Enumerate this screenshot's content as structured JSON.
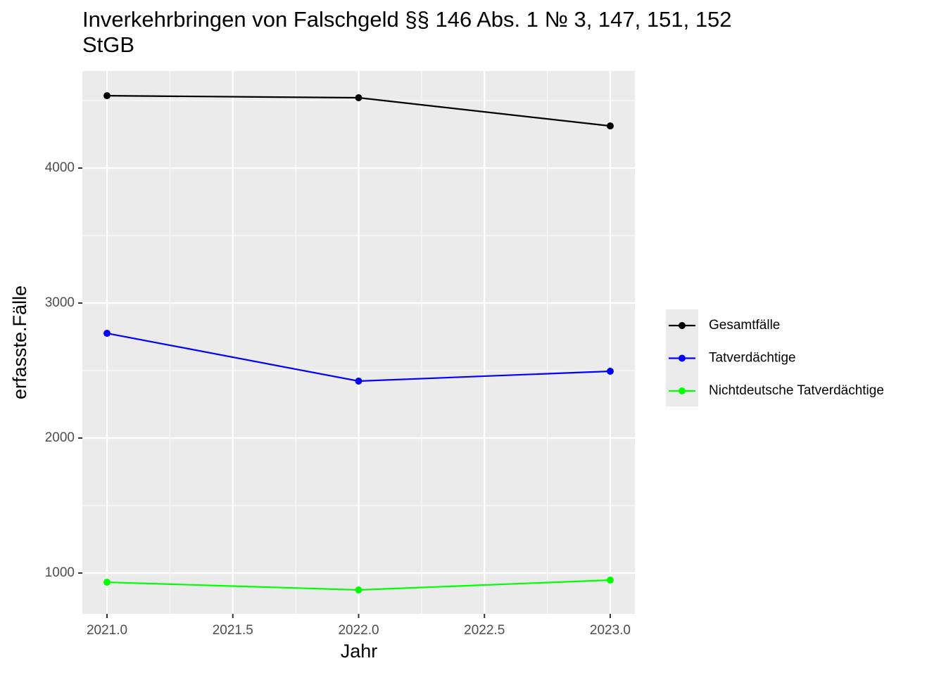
{
  "chart_data": {
    "type": "line",
    "title": "Inverkehrbringen von Falschgeld §§ 146 Abs. 1 № 3, 147, 151, 152 StGB",
    "x_label": "Jahr",
    "y_label": "erfasste.Fälle",
    "x": [
      2021,
      2022,
      2023
    ],
    "xlim": [
      2020.902,
      2023.098
    ],
    "xticks": [
      {
        "value": 2021,
        "label": "2021.0"
      },
      {
        "value": 2021.5,
        "label": "2021.5"
      },
      {
        "value": 2022,
        "label": "2022.0"
      },
      {
        "value": 2022.5,
        "label": "2022.5"
      },
      {
        "value": 2023,
        "label": "2023.0"
      }
    ],
    "ylim": [
      698,
      4719
    ],
    "yticks": [
      1000,
      2000,
      3000,
      4000
    ],
    "grid": true,
    "legend": "right",
    "series": [
      {
        "name": "Gesamtfälle",
        "color": "#000000",
        "values": [
          4536,
          4521,
          4312
        ]
      },
      {
        "name": "Tatverdächtige",
        "color": "#0000ff",
        "values": [
          2776,
          2422,
          2495
        ]
      },
      {
        "name": "Nichtdeutsche Tatverdächtige",
        "color": "#00ff00",
        "values": [
          932,
          875,
          948
        ]
      }
    ]
  }
}
